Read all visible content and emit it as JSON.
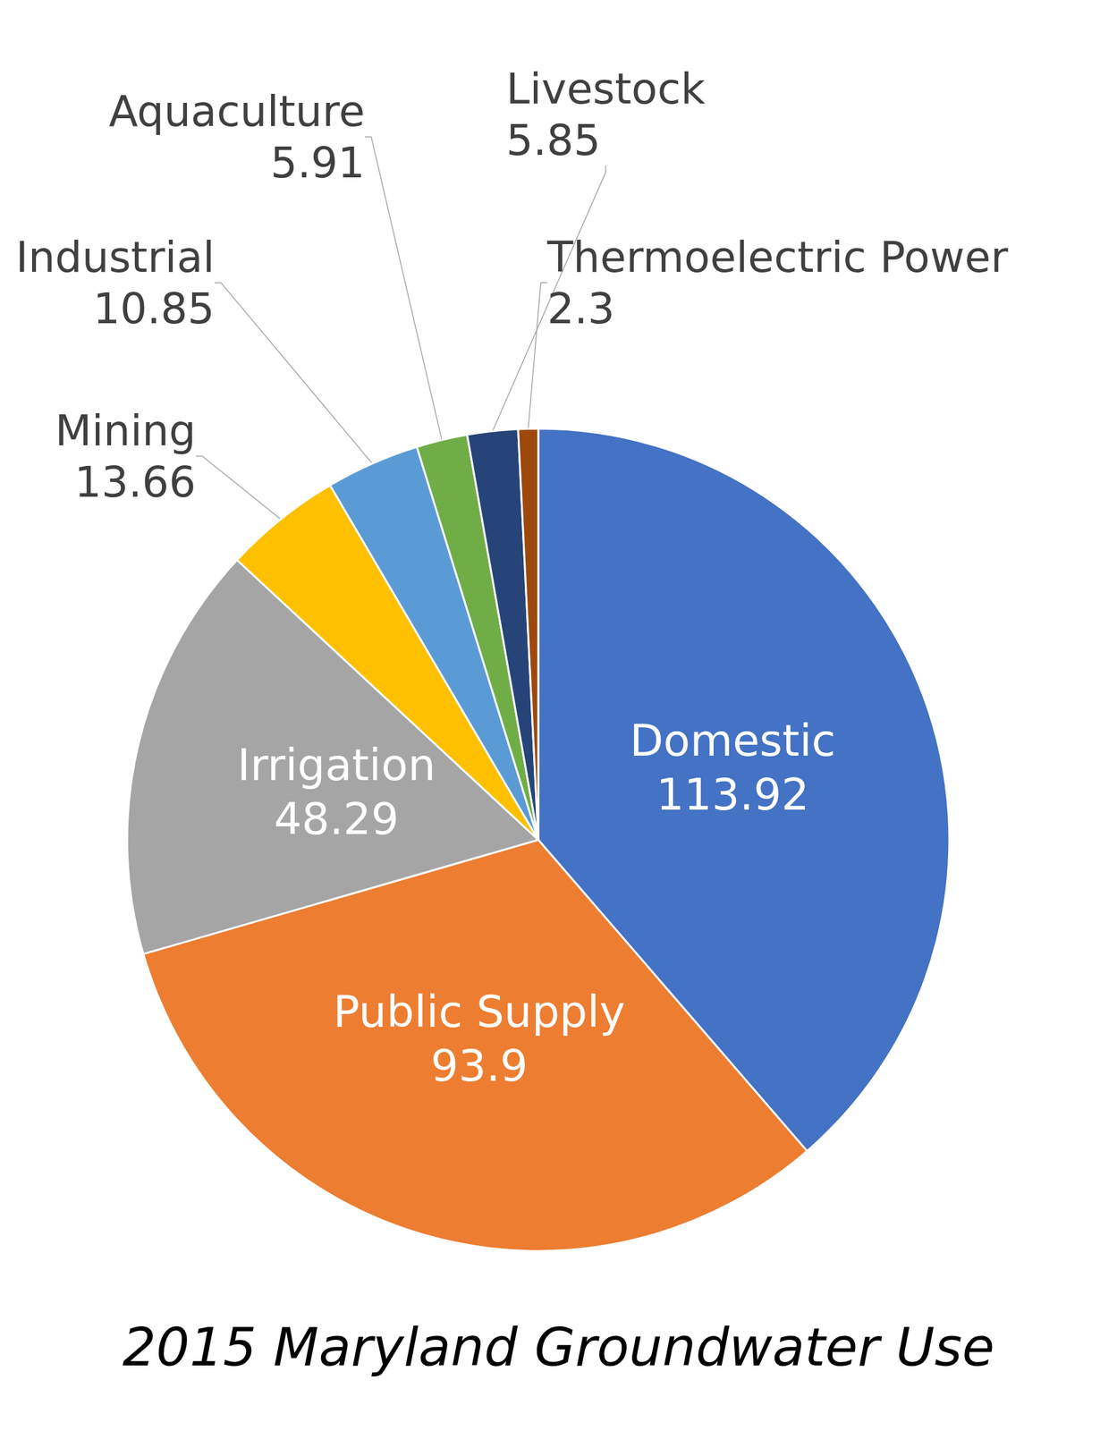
{
  "chart_data": {
    "type": "pie",
    "title": "2015 Maryland Groundwater Use",
    "categories": [
      "Domestic",
      "Public Supply",
      "Irrigation",
      "Mining",
      "Industrial",
      "Aquaculture",
      "Livestock",
      "Thermoelectric Power"
    ],
    "values": [
      113.92,
      93.9,
      48.29,
      13.66,
      10.85,
      5.91,
      5.85,
      2.3
    ],
    "colors": [
      "#4472c4",
      "#ed7d31",
      "#a5a5a5",
      "#ffc000",
      "#5b9bd5",
      "#70ad47",
      "#264478",
      "#9e480e"
    ],
    "data_labels": true
  }
}
